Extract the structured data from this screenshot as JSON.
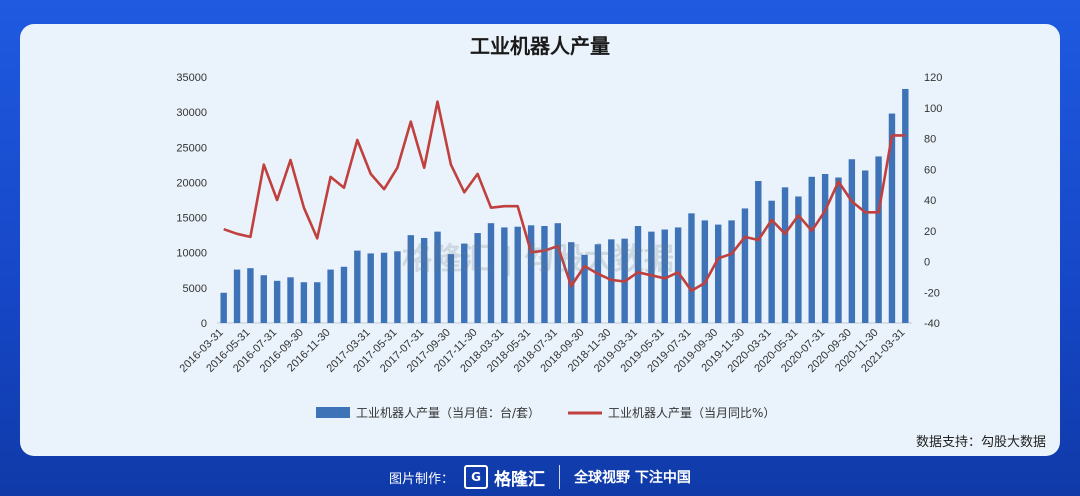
{
  "title": "工业机器人产量",
  "source": "数据支持：勾股大数据",
  "watermark": "格隆汇 | 勾股大数据",
  "footer": {
    "made_by": "图片制作：",
    "logo_text": "格隆汇",
    "slogan": "全球视野 下注中国"
  },
  "colors": {
    "bar": "#3e73b8",
    "line": "#c0403e",
    "background": "#1a4fd1",
    "card": "#eaf3fb"
  },
  "chart_data": {
    "type": "bar",
    "title": "工业机器人产量",
    "x": [
      "2016-03-31",
      "2016-04-30",
      "2016-05-31",
      "2016-06-30",
      "2016-07-31",
      "2016-08-31",
      "2016-09-30",
      "2016-10-31",
      "2016-11-30",
      "2016-12-31",
      "2017-01-31",
      "2017-03-31",
      "2017-04-30",
      "2017-05-31",
      "2017-06-30",
      "2017-07-31",
      "2017-08-31",
      "2017-09-30",
      "2017-10-31",
      "2017-11-30",
      "2017-12-31",
      "2018-03-31",
      "2018-04-30",
      "2018-05-31",
      "2018-06-30",
      "2018-07-31",
      "2018-08-31",
      "2018-09-30",
      "2018-10-31",
      "2018-11-30",
      "2018-12-31",
      "2019-03-31",
      "2019-04-30",
      "2019-05-31",
      "2019-06-30",
      "2019-07-31",
      "2019-08-31",
      "2019-09-30",
      "2019-10-31",
      "2019-11-30",
      "2019-12-31",
      "2020-03-31",
      "2020-04-30",
      "2020-05-31",
      "2020-06-30",
      "2020-07-31",
      "2020-08-31",
      "2020-09-30",
      "2020-10-31",
      "2020-11-30",
      "2020-12-31",
      "2021-03-31"
    ],
    "tick_labels": [
      "2016-03-31",
      "2016-05-31",
      "2016-07-31",
      "2016-09-30",
      "2016-11-30",
      "2017-03-31",
      "2017-05-31",
      "2017-07-31",
      "2017-09-30",
      "2017-11-30",
      "2018-03-31",
      "2018-05-31",
      "2018-07-31",
      "2018-09-30",
      "2018-11-30",
      "2019-03-31",
      "2019-05-31",
      "2019-07-31",
      "2019-09-30",
      "2019-11-30",
      "2020-03-31",
      "2020-05-31",
      "2020-07-31",
      "2020-09-30",
      "2020-11-30",
      "2021-03-31"
    ],
    "series": [
      {
        "name": "工业机器人产量（当月值：台/套）",
        "type": "bar",
        "axis": "left",
        "values": [
          4300,
          7600,
          7800,
          6800,
          6000,
          6500,
          5800,
          5800,
          7600,
          8000,
          10300,
          9900,
          10000,
          10200,
          12500,
          12100,
          13000,
          9800,
          11300,
          12800,
          14200,
          13600,
          13700,
          13900,
          13800,
          14200,
          11500,
          9700,
          11200,
          11900,
          12000,
          13800,
          13000,
          13300,
          13600,
          15600,
          14600,
          14000,
          14600,
          16300,
          20200,
          17400,
          19300,
          18000,
          20800,
          21200,
          20700,
          23300,
          21700,
          23700,
          29800,
          33300
        ]
      },
      {
        "name": "工业机器人产量（当月同比%）",
        "type": "line",
        "axis": "right",
        "values": [
          21,
          18,
          16,
          63,
          40,
          66,
          35,
          15,
          55,
          48,
          79,
          57,
          47,
          61,
          91,
          61,
          104,
          63,
          45,
          57,
          35,
          36,
          36,
          6,
          7,
          10,
          -16,
          -3,
          -8,
          -12,
          -13,
          -7,
          -9,
          -11,
          -7,
          -19,
          -14,
          2,
          5,
          16,
          14,
          27,
          18,
          30,
          20,
          33,
          52,
          39,
          32,
          32,
          82,
          82
        ]
      }
    ],
    "ylim_left": [
      0,
      35000
    ],
    "yticks_left": [
      0,
      5000,
      10000,
      15000,
      20000,
      25000,
      30000,
      35000
    ],
    "ylim_right": [
      -40,
      120
    ],
    "yticks_right": [
      -40,
      -20,
      0,
      20,
      40,
      60,
      80,
      100,
      120
    ],
    "legend_position": "bottom",
    "grid": false
  }
}
